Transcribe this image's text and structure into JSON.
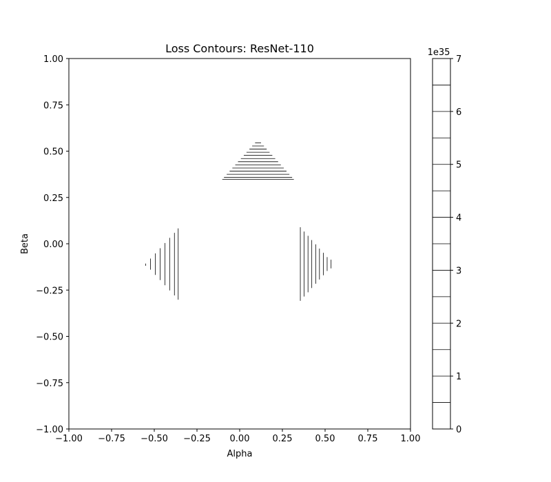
{
  "chart_data": {
    "type": "contour",
    "title": "Loss Contours: ResNet-110",
    "xlabel": "Alpha",
    "ylabel": "Beta",
    "xlim": [
      -1.0,
      1.0
    ],
    "ylim": [
      -1.0,
      1.0
    ],
    "xticks": [
      -1.0,
      -0.75,
      -0.5,
      -0.25,
      0.0,
      0.25,
      0.5,
      0.75,
      1.0
    ],
    "yticks": [
      -1.0,
      -0.75,
      -0.5,
      -0.25,
      0.0,
      0.25,
      0.5,
      0.75,
      1.0
    ],
    "xtick_labels": [
      "−1.00",
      "−0.75",
      "−0.50",
      "−0.25",
      "0.00",
      "0.25",
      "0.50",
      "0.75",
      "1.00"
    ],
    "ytick_labels": [
      "−1.00",
      "−0.75",
      "−0.50",
      "−0.25",
      "0.00",
      "0.25",
      "0.50",
      "0.75",
      "1.00"
    ],
    "grid": false,
    "line_color": "#000000",
    "contour_groups": [
      {
        "orientation": "horizontal",
        "segments": [
          {
            "y": 0.545,
            "x": [
              0.09,
              0.125
            ]
          },
          {
            "y": 0.528,
            "x": [
              0.073,
              0.142
            ]
          },
          {
            "y": 0.511,
            "x": [
              0.057,
              0.158
            ]
          },
          {
            "y": 0.494,
            "x": [
              0.04,
              0.175
            ]
          },
          {
            "y": 0.477,
            "x": [
              0.024,
              0.191
            ]
          },
          {
            "y": 0.46,
            "x": [
              0.007,
              0.208
            ]
          },
          {
            "y": 0.443,
            "x": [
              -0.01,
              0.225
            ]
          },
          {
            "y": 0.426,
            "x": [
              -0.026,
              0.241
            ]
          },
          {
            "y": 0.409,
            "x": [
              -0.043,
              0.258
            ]
          },
          {
            "y": 0.392,
            "x": [
              -0.059,
              0.274
            ]
          },
          {
            "y": 0.375,
            "x": [
              -0.076,
              0.291
            ]
          },
          {
            "y": 0.358,
            "x": [
              -0.092,
              0.307
            ]
          },
          {
            "y": 0.348,
            "x": [
              -0.102,
              0.317
            ]
          }
        ]
      },
      {
        "orientation": "vertical",
        "segments": [
          {
            "x": -0.55,
            "y": [
              -0.119,
              -0.107
            ]
          },
          {
            "x": -0.522,
            "y": [
              -0.14,
              -0.08
            ]
          },
          {
            "x": -0.494,
            "y": [
              -0.168,
              -0.052
            ]
          },
          {
            "x": -0.466,
            "y": [
              -0.196,
              -0.024
            ]
          },
          {
            "x": -0.438,
            "y": [
              -0.224,
              0.004
            ]
          },
          {
            "x": -0.41,
            "y": [
              -0.252,
              0.032
            ]
          },
          {
            "x": -0.382,
            "y": [
              -0.279,
              0.059
            ]
          },
          {
            "x": -0.36,
            "y": [
              -0.302,
              0.083
            ]
          }
        ]
      },
      {
        "orientation": "vertical",
        "segments": [
          {
            "x": 0.355,
            "y": [
              -0.308,
              0.089
            ]
          },
          {
            "x": 0.377,
            "y": [
              -0.285,
              0.066
            ]
          },
          {
            "x": 0.4,
            "y": [
              -0.262,
              0.043
            ]
          },
          {
            "x": 0.422,
            "y": [
              -0.239,
              0.02
            ]
          },
          {
            "x": 0.445,
            "y": [
              -0.216,
              -0.003
            ]
          },
          {
            "x": 0.467,
            "y": [
              -0.193,
              -0.026
            ]
          },
          {
            "x": 0.49,
            "y": [
              -0.17,
              -0.049
            ]
          },
          {
            "x": 0.512,
            "y": [
              -0.147,
              -0.072
            ]
          },
          {
            "x": 0.535,
            "y": [
              -0.133,
              -0.086
            ]
          }
        ]
      }
    ],
    "colorbar": {
      "min": 0,
      "max": 7,
      "offset_label": "1e35",
      "ticks": [
        0,
        1,
        2,
        3,
        4,
        5,
        6,
        7
      ],
      "tick_labels": [
        "0",
        "1",
        "2",
        "3",
        "4",
        "5",
        "6",
        "7"
      ],
      "levels": [
        0.5,
        1.0,
        1.5,
        2.0,
        2.5,
        3.0,
        3.5,
        4.0,
        4.5,
        5.0,
        5.5,
        6.0,
        6.5
      ],
      "level_color": "#000000"
    }
  }
}
